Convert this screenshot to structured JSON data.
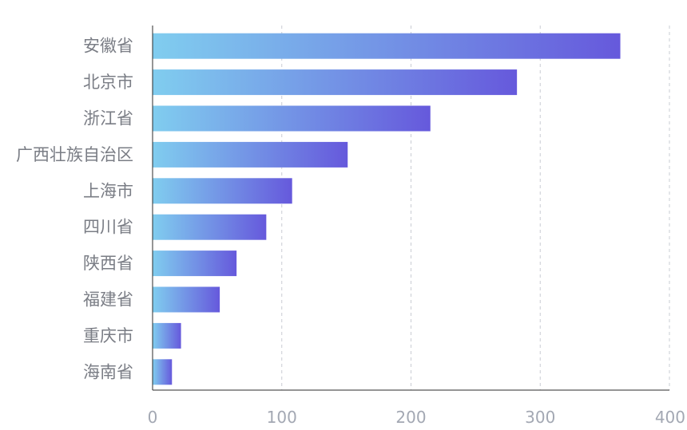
{
  "chart_data": {
    "type": "bar",
    "orientation": "horizontal",
    "categories": [
      "安徽省",
      "北京市",
      "浙江省",
      "广西壮族自治区",
      "上海市",
      "四川省",
      "陕西省",
      "福建省",
      "重庆市",
      "海南省"
    ],
    "values": [
      362,
      282,
      215,
      151,
      108,
      88,
      65,
      52,
      22,
      15
    ],
    "xlim": [
      0,
      400
    ],
    "x_ticks": [
      0,
      100,
      200,
      300,
      400
    ],
    "grid": "vertical-dashed",
    "legend": "none",
    "colors": {
      "bar_gradient_start": "#80cdef",
      "bar_gradient_end": "#6659dc",
      "grid": "#c9ccd3",
      "axis": "#2b2b2b",
      "category_text": "#7a7d85",
      "tick_text": "#a3a8b3"
    }
  }
}
